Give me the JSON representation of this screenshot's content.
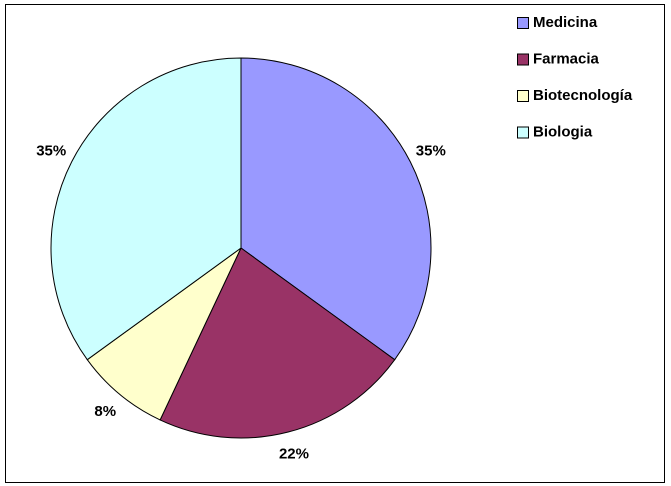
{
  "chart_data": {
    "type": "pie",
    "categories": [
      "Medicina",
      "Farmacia",
      "Biotecnología",
      "Biologia"
    ],
    "values": [
      35,
      22,
      8,
      35
    ],
    "value_labels": [
      "35%",
      "22%",
      "8%",
      "35%"
    ],
    "colors": [
      "#9999ff",
      "#993366",
      "#ffffcc",
      "#ccffff"
    ]
  }
}
